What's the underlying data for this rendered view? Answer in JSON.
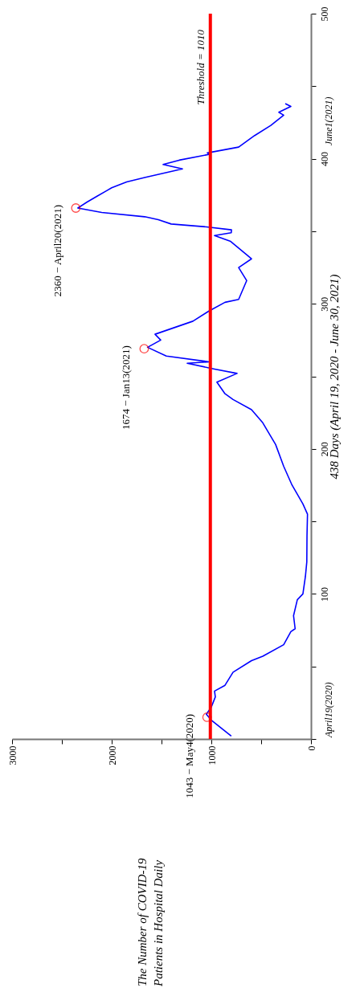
{
  "chart_data": {
    "type": "line",
    "ylabel": "438 Days (April 19, 2020 - June 30, 2021)",
    "xlim": [
      3000,
      0
    ],
    "xticks": [
      3000,
      {
        "value": 2500,
        "label": null
      },
      2000,
      {
        "value": 1500,
        "label": null
      },
      1000,
      {
        "value": 500,
        "label": null
      },
      0
    ],
    "ylim": [
      0,
      500
    ],
    "yticks": [
      {
        "value": 0,
        "label": null
      },
      {
        "value": 50,
        "label": null
      },
      100,
      {
        "value": 150,
        "label": null
      },
      200,
      {
        "value": 250,
        "label": null
      },
      300,
      {
        "value": 350,
        "label": null
      },
      400,
      {
        "value": 450,
        "label": null
      },
      500
    ],
    "grid": false,
    "series": [
      {
        "color": "#0000ff",
        "x": [
          800,
          1000,
          1050,
          1000,
          960,
          968,
          863,
          782,
          597,
          484,
          274,
          202,
          159,
          175,
          137,
          81,
          56,
          42,
          40,
          35,
          81,
          190,
          274,
          355,
          484,
          597,
          782,
          863,
          944,
          742,
          968,
          1242,
          1024,
          1452,
          1640,
          1508,
          1565,
          1185,
          1024,
          863,
          726,
          645,
          726,
          597,
          806,
          968,
          800,
          798,
          1048,
          1403,
          1532,
          1669,
          2100,
          2340,
          2250,
          2150,
          2050,
          2000,
          1850,
          1669,
          1290,
          1484,
          1323,
          1024,
          1040,
          726,
          565,
          403,
          274,
          323,
          202,
          258
        ],
        "values": [
          2,
          13,
          17,
          22,
          29,
          33,
          37,
          46,
          54,
          57,
          65,
          74,
          76,
          85,
          96,
          100,
          112,
          122,
          140,
          155,
          162,
          175,
          188,
          203,
          218,
          227,
          234,
          238,
          246,
          252,
          255,
          259,
          260,
          264,
          270,
          275,
          279,
          288,
          295,
          301,
          303,
          316,
          325,
          331,
          343,
          347,
          349,
          351,
          353,
          355,
          358,
          360,
          363,
          366,
          370,
          374,
          378,
          380,
          384,
          387,
          393,
          396,
          399,
          403,
          404,
          408,
          416,
          423,
          430,
          432,
          436,
          438
        ]
      },
      {
        "type": "scatter",
        "marker": "circle",
        "color": "#ff0000",
        "x": [
          1043,
          1674,
          2360
        ],
        "values": [
          15,
          269,
          366
        ]
      }
    ],
    "ref_lines": [
      {
        "axis": "x",
        "value": 1010,
        "label": "Threshold = 1010",
        "color": "#ff0000"
      }
    ],
    "annotations": [
      {
        "text": "1043 − May4(2020)",
        "x": 1043,
        "y": 15
      },
      {
        "text": "1674 − Jan13(2021)",
        "x": 1674,
        "y": 269
      },
      {
        "text": "2360 − April20(2021)",
        "x": 2360,
        "y": 366
      },
      "April19(2020)",
      "June1(2021)",
      "The Number of  COVID-19\nPatients in Hospital Daily"
    ]
  }
}
